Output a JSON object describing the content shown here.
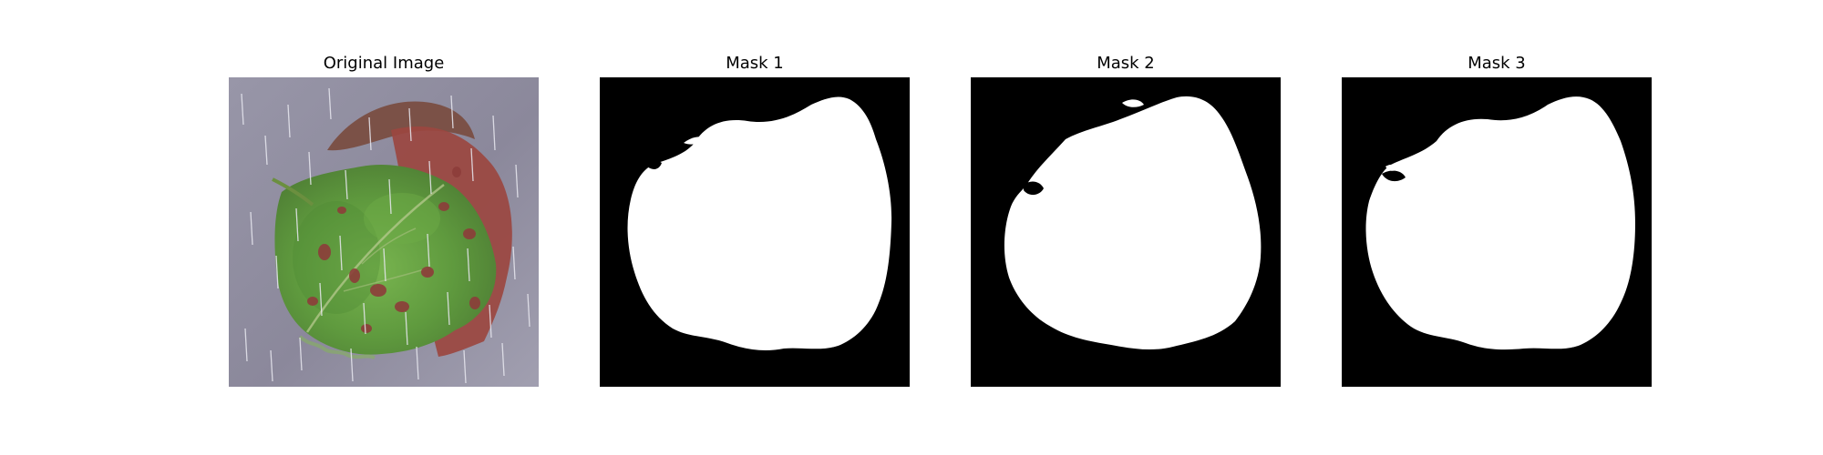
{
  "figure": {
    "panels": [
      {
        "title": "Original Image",
        "kind": "photo"
      },
      {
        "title": "Mask 1",
        "kind": "mask"
      },
      {
        "title": "Mask 2",
        "kind": "mask"
      },
      {
        "title": "Mask 3",
        "kind": "mask"
      }
    ],
    "colors": {
      "mask_background": "#000000",
      "mask_foreground": "#ffffff",
      "photo_background": "#8d8a9b",
      "leaf_green": "#5f9a3e",
      "leaf_red": "#a34f45"
    }
  }
}
